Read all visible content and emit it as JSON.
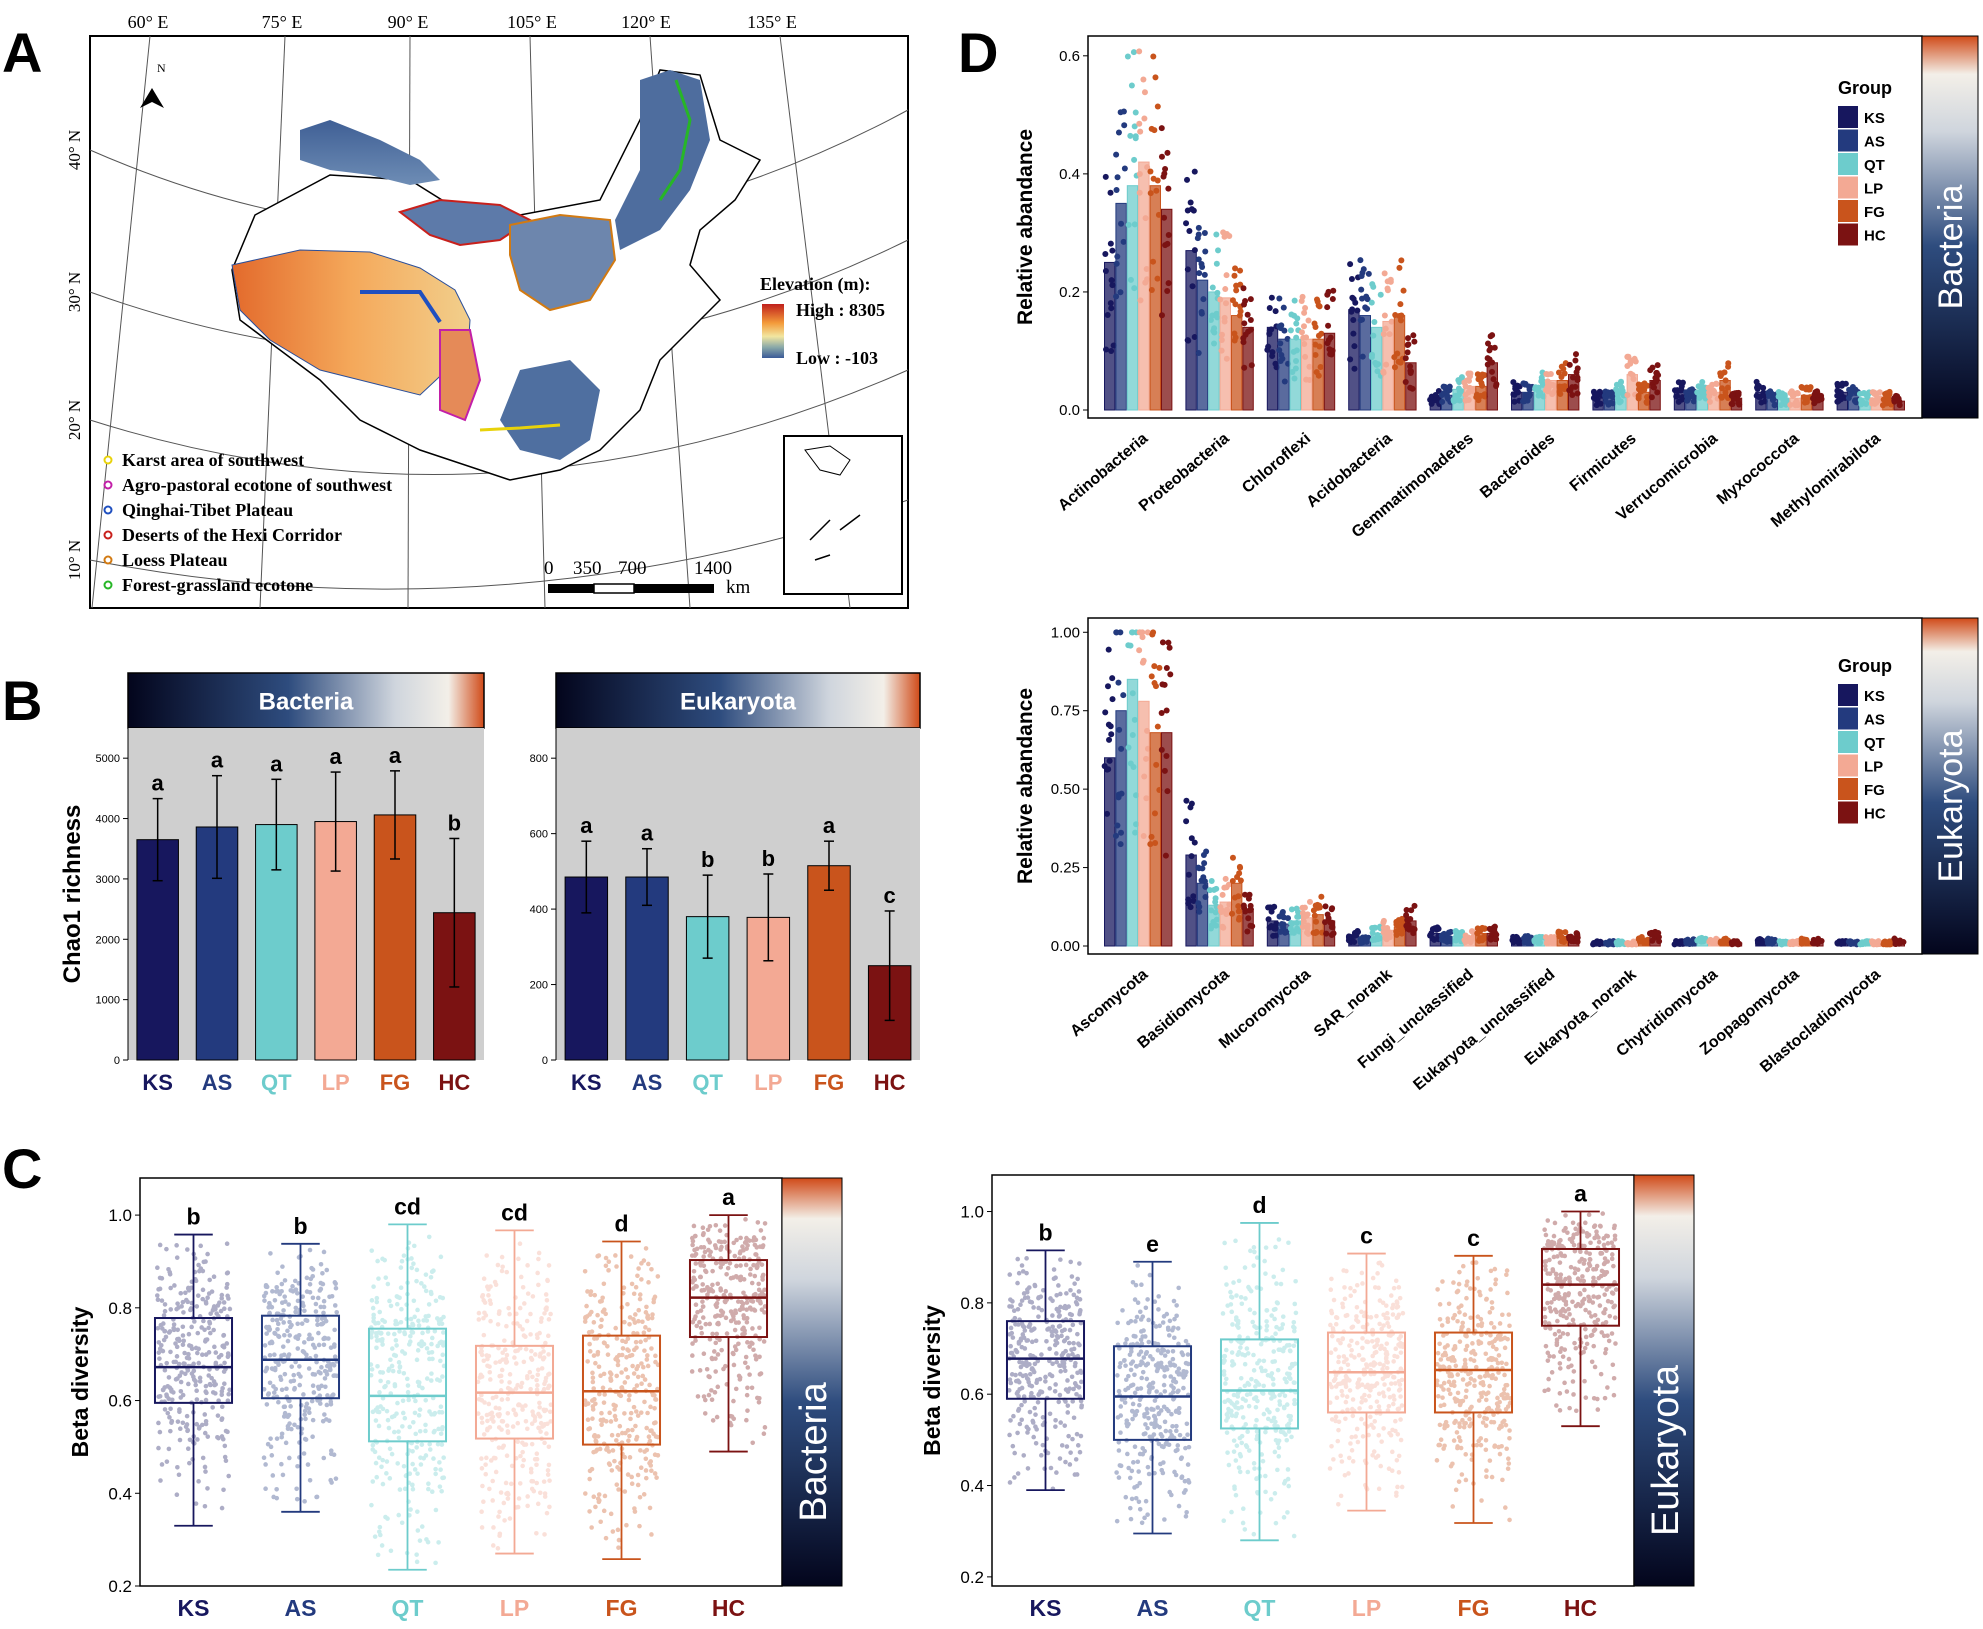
{
  "colors": {
    "KS": "#17175e",
    "AS": "#233a7e",
    "QT": "#6dcccc",
    "LP": "#f3a994",
    "FG": "#c9541c",
    "HC": "#7b1212",
    "panel_bg": "#cfcfcf"
  },
  "groups": [
    "KS",
    "AS",
    "QT",
    "LP",
    "FG",
    "HC"
  ],
  "panel_labels": {
    "a": "A",
    "b": "B",
    "c": "C",
    "d": "D"
  },
  "map": {
    "lon_ticks": [
      "60° E",
      "75° E",
      "90° E",
      "105° E",
      "120° E",
      "135° E"
    ],
    "lat_ticks": [
      "40° N",
      "30° N",
      "20° N",
      "10° N"
    ],
    "north": "N",
    "elevation_title": "Elevation (m):",
    "elevation_high": "High : 8305",
    "elevation_low": "Low : -103",
    "scale_labels": [
      "0",
      "350",
      "700",
      "1400"
    ],
    "scale_unit": "km",
    "legend": [
      {
        "label": "Karst area of southwest",
        "color": "#e8d20a"
      },
      {
        "label": "Agro-pastoral ecotone of southwest",
        "color": "#c21fa8"
      },
      {
        "label": "Qinghai-Tibet Plateau",
        "color": "#1f4fbf"
      },
      {
        "label": "Deserts of the Hexi Corridor",
        "color": "#c8201c"
      },
      {
        "label": "Loess Plateau",
        "color": "#d27a12"
      },
      {
        "label": "Forest-grassland ecotone",
        "color": "#27b627"
      }
    ]
  },
  "chart_data": [
    {
      "id": "B-bacteria",
      "type": "bar",
      "title": "Bacteria",
      "ylabel": "Chao1 richness",
      "categories": [
        "KS",
        "AS",
        "QT",
        "LP",
        "FG",
        "HC"
      ],
      "values": [
        3650,
        3860,
        3900,
        3950,
        4060,
        2440
      ],
      "error": [
        680,
        850,
        750,
        820,
        730,
        1230
      ],
      "letters": [
        "a",
        "a",
        "a",
        "a",
        "a",
        "b"
      ],
      "ylim": [
        0,
        5500
      ],
      "yticks": [
        0,
        1000,
        2000,
        3000,
        4000,
        5000
      ]
    },
    {
      "id": "B-eukaryota",
      "type": "bar",
      "title": "Eukaryota",
      "ylabel": "",
      "categories": [
        "KS",
        "AS",
        "QT",
        "LP",
        "FG",
        "HC"
      ],
      "values": [
        485,
        485,
        380,
        378,
        515,
        250
      ],
      "error": [
        95,
        75,
        110,
        115,
        65,
        145
      ],
      "letters": [
        "a",
        "a",
        "b",
        "b",
        "a",
        "c"
      ],
      "ylim": [
        0,
        880
      ],
      "yticks": [
        0,
        200,
        400,
        600,
        800
      ]
    },
    {
      "id": "C-bacteria",
      "type": "box",
      "side_label": "Bacteria",
      "ylabel": "Beta diversity",
      "categories": [
        "KS",
        "AS",
        "QT",
        "LP",
        "FG",
        "HC"
      ],
      "boxes": [
        {
          "min": 0.33,
          "q1": 0.595,
          "median": 0.672,
          "q3": 0.778,
          "max": 0.958,
          "letter": "b"
        },
        {
          "min": 0.36,
          "q1": 0.605,
          "median": 0.688,
          "q3": 0.783,
          "max": 0.938,
          "letter": "b"
        },
        {
          "min": 0.235,
          "q1": 0.512,
          "median": 0.61,
          "q3": 0.755,
          "max": 0.98,
          "letter": "cd"
        },
        {
          "min": 0.27,
          "q1": 0.518,
          "median": 0.617,
          "q3": 0.718,
          "max": 0.967,
          "letter": "cd"
        },
        {
          "min": 0.258,
          "q1": 0.505,
          "median": 0.62,
          "q3": 0.74,
          "max": 0.943,
          "letter": "d"
        },
        {
          "min": 0.49,
          "q1": 0.737,
          "median": 0.822,
          "q3": 0.903,
          "max": 1.0,
          "letter": "a"
        }
      ],
      "ylim": [
        0.2,
        1.08
      ],
      "yticks": [
        0.2,
        0.4,
        0.6,
        0.8,
        1.0
      ]
    },
    {
      "id": "C-eukaryota",
      "type": "box",
      "side_label": "Eukaryota",
      "ylabel": "Beta diversity",
      "categories": [
        "KS",
        "AS",
        "QT",
        "LP",
        "FG",
        "HC"
      ],
      "boxes": [
        {
          "min": 0.39,
          "q1": 0.59,
          "median": 0.678,
          "q3": 0.76,
          "max": 0.915,
          "letter": "b"
        },
        {
          "min": 0.295,
          "q1": 0.5,
          "median": 0.595,
          "q3": 0.705,
          "max": 0.89,
          "letter": "e"
        },
        {
          "min": 0.28,
          "q1": 0.525,
          "median": 0.608,
          "q3": 0.72,
          "max": 0.975,
          "letter": "d"
        },
        {
          "min": 0.345,
          "q1": 0.56,
          "median": 0.648,
          "q3": 0.735,
          "max": 0.908,
          "letter": "c"
        },
        {
          "min": 0.318,
          "q1": 0.56,
          "median": 0.653,
          "q3": 0.735,
          "max": 0.903,
          "letter": "c"
        },
        {
          "min": 0.53,
          "q1": 0.75,
          "median": 0.84,
          "q3": 0.918,
          "max": 1.0,
          "letter": "a"
        }
      ],
      "ylim": [
        0.18,
        1.08
      ],
      "yticks": [
        0.2,
        0.4,
        0.6,
        0.8,
        1.0
      ]
    },
    {
      "id": "D-bacteria",
      "type": "bar",
      "side_label": "Bacteria",
      "ylabel": "Relative abandance",
      "legend_title": "Group",
      "categories": [
        "Actinobacteria",
        "Proteobacteria",
        "Chloroflexi",
        "Acidobacteria",
        "Gemmatimonadetes",
        "Bacteroides",
        "Firmicutes",
        "Verrucomicrobia",
        "Myxococcota",
        "Methylomirabilota"
      ],
      "series": [
        {
          "name": "KS",
          "values": [
            0.25,
            0.27,
            0.14,
            0.17,
            0.025,
            0.03,
            0.02,
            0.03,
            0.03,
            0.03
          ]
        },
        {
          "name": "AS",
          "values": [
            0.35,
            0.22,
            0.12,
            0.16,
            0.025,
            0.03,
            0.02,
            0.025,
            0.02,
            0.025
          ]
        },
        {
          "name": "QT",
          "values": [
            0.38,
            0.2,
            0.12,
            0.14,
            0.035,
            0.04,
            0.03,
            0.03,
            0.02,
            0.02
          ]
        },
        {
          "name": "LP",
          "values": [
            0.42,
            0.19,
            0.12,
            0.15,
            0.04,
            0.05,
            0.06,
            0.03,
            0.02,
            0.02
          ]
        },
        {
          "name": "FG",
          "values": [
            0.38,
            0.16,
            0.12,
            0.16,
            0.04,
            0.05,
            0.03,
            0.05,
            0.025,
            0.02
          ]
        },
        {
          "name": "HC",
          "values": [
            0.34,
            0.14,
            0.13,
            0.08,
            0.08,
            0.06,
            0.05,
            0.02,
            0.02,
            0.015
          ]
        }
      ],
      "ylim": [
        0,
        0.62
      ],
      "yticks": [
        0.0,
        0.2,
        0.4,
        0.6
      ]
    },
    {
      "id": "D-eukaryota",
      "type": "bar",
      "side_label": "Eukaryota",
      "ylabel": "Relative abandance",
      "legend_title": "Group",
      "categories": [
        "Ascomycota",
        "Basidiomycota",
        "Mucoromycota",
        "SAR_norank",
        "Fungi_unclassified",
        "Eukaryota_unclassified",
        "Eukaryota_norank",
        "Chytridiomycota",
        "Zoopagomycota",
        "Blastocladiomycota"
      ],
      "series": [
        {
          "name": "KS",
          "values": [
            0.6,
            0.29,
            0.08,
            0.03,
            0.04,
            0.02,
            0.01,
            0.01,
            0.015,
            0.01
          ]
        },
        {
          "name": "AS",
          "values": [
            0.75,
            0.2,
            0.07,
            0.02,
            0.03,
            0.02,
            0.01,
            0.015,
            0.015,
            0.01
          ]
        },
        {
          "name": "QT",
          "values": [
            0.85,
            0.13,
            0.08,
            0.04,
            0.03,
            0.02,
            0.01,
            0.02,
            0.01,
            0.01
          ]
        },
        {
          "name": "LP",
          "values": [
            0.78,
            0.14,
            0.09,
            0.05,
            0.03,
            0.02,
            0.01,
            0.015,
            0.01,
            0.01
          ]
        },
        {
          "name": "FG",
          "values": [
            0.68,
            0.2,
            0.1,
            0.06,
            0.04,
            0.03,
            0.02,
            0.015,
            0.015,
            0.01
          ]
        },
        {
          "name": "HC",
          "values": [
            0.68,
            0.11,
            0.08,
            0.08,
            0.04,
            0.03,
            0.03,
            0.01,
            0.015,
            0.015
          ]
        }
      ],
      "ylim": [
        0,
        1.02
      ],
      "yticks": [
        0.0,
        0.25,
        0.5,
        0.75,
        1.0
      ]
    }
  ]
}
